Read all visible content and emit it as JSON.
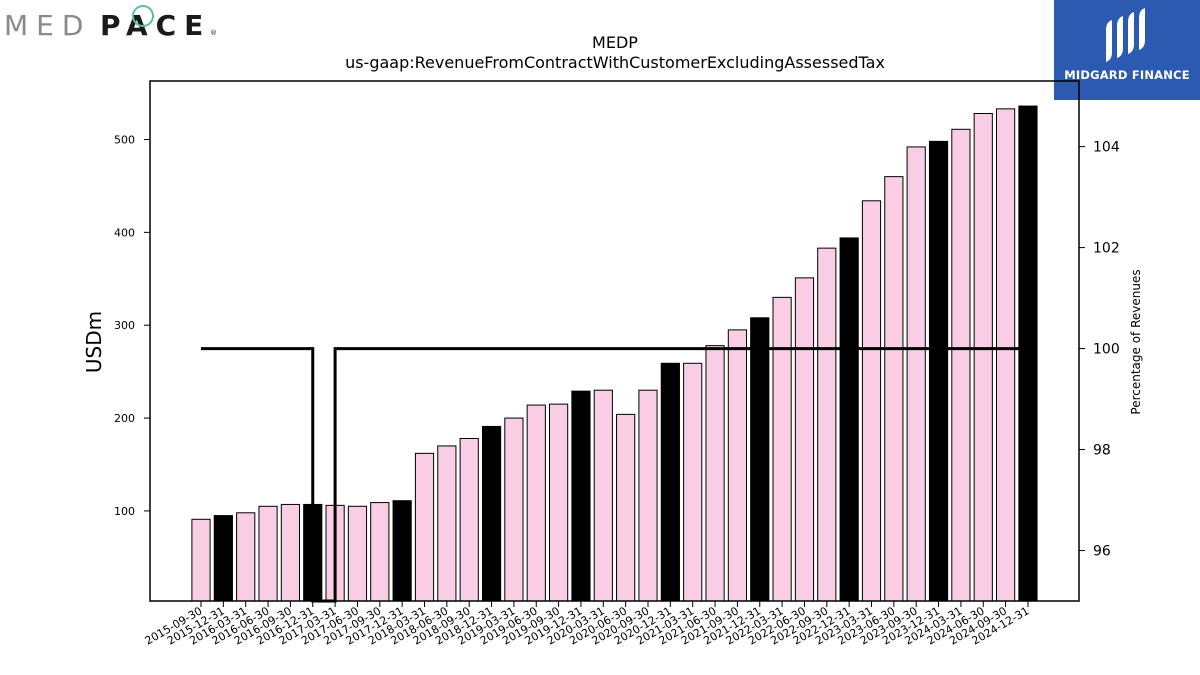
{
  "branding": {
    "company_logo_text": "MEDPACE",
    "company_logo_light": "MED",
    "company_logo_bold": "PACE",
    "company_logo_mark": "®",
    "publisher_name": "MIDGARD FINANCE"
  },
  "colors": {
    "bar_quarter": "#f9cde3",
    "bar_year_end": "#000000",
    "bar_edge": "#000000",
    "line": "#000000",
    "logo_accent": "#5bbf95",
    "publisher_bg": "#2b5ab0"
  },
  "chart_data": {
    "type": "bar",
    "title": "MEDP",
    "subtitle": "us-gaap:RevenueFromContractWithCustomerExcludingAssessedTax",
    "ylabel": "USDm",
    "y2label": "Percentage of Revenues",
    "categories": [
      "2015-09-30",
      "2015-12-31",
      "2016-03-31",
      "2016-06-30",
      "2016-09-30",
      "2016-12-31",
      "2017-03-31",
      "2017-06-30",
      "2017-09-30",
      "2017-12-31",
      "2018-03-31",
      "2018-06-30",
      "2018-09-30",
      "2018-12-31",
      "2019-03-31",
      "2019-06-30",
      "2019-09-30",
      "2019-12-31",
      "2020-03-31",
      "2020-06-30",
      "2020-09-30",
      "2020-12-31",
      "2021-03-31",
      "2021-06-30",
      "2021-09-30",
      "2021-12-31",
      "2022-03-31",
      "2022-06-30",
      "2022-09-30",
      "2022-12-31",
      "2023-03-31",
      "2023-06-30",
      "2023-09-30",
      "2023-12-31",
      "2024-03-31",
      "2024-06-30",
      "2024-09-30",
      "2024-12-31"
    ],
    "values": [
      91,
      95,
      98,
      105,
      107,
      107,
      106,
      105,
      109,
      111,
      162,
      170,
      178,
      191,
      200,
      214,
      215,
      229,
      230,
      204,
      230,
      259,
      259,
      278,
      295,
      308,
      330,
      351,
      383,
      394,
      434,
      460,
      492,
      498,
      511,
      528,
      533,
      536
    ],
    "year_end_highlight": [
      false,
      true,
      false,
      false,
      false,
      true,
      false,
      false,
      false,
      true,
      false,
      false,
      false,
      true,
      false,
      false,
      false,
      true,
      false,
      false,
      false,
      true,
      false,
      false,
      false,
      true,
      false,
      false,
      false,
      true,
      false,
      false,
      false,
      true,
      false,
      false,
      false,
      true
    ],
    "ylim": [
      3,
      563
    ],
    "yticks": [
      100,
      200,
      300,
      400,
      500
    ],
    "series2": {
      "values": [
        100,
        100,
        100,
        100,
        100,
        100,
        95,
        100,
        100,
        100,
        100,
        100,
        100,
        100,
        100,
        100,
        100,
        100,
        100,
        100,
        100,
        100,
        100,
        100,
        100,
        100,
        100,
        100,
        100,
        100,
        100,
        100,
        100,
        100,
        100,
        100,
        100,
        100
      ],
      "style": "step"
    },
    "y2lim": [
      95,
      105.3
    ],
    "y2ticks": [
      96,
      98,
      100,
      102,
      104
    ],
    "grid": false,
    "legend": "none"
  }
}
